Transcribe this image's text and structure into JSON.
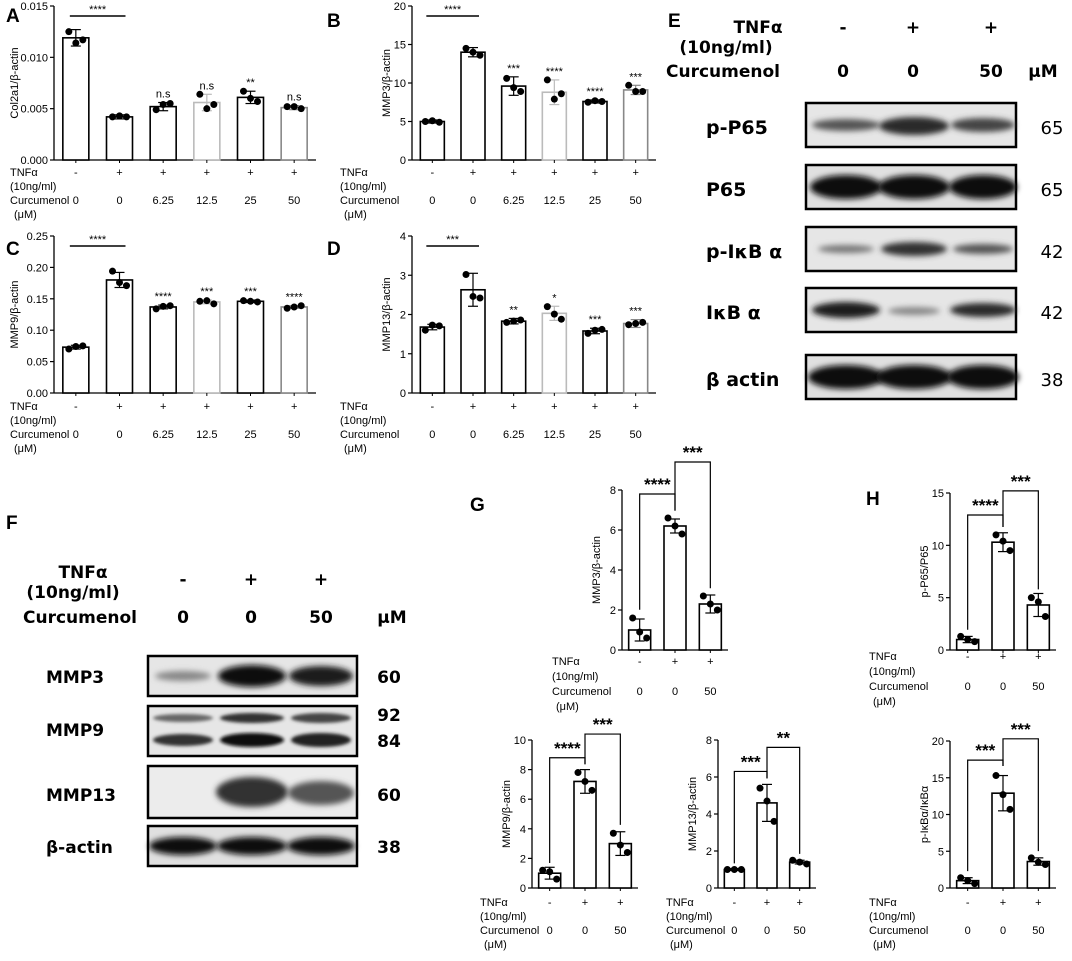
{
  "panels": {
    "A": {
      "letter": "A"
    },
    "B": {
      "letter": "B"
    },
    "C": {
      "letter": "C"
    },
    "D": {
      "letter": "D"
    },
    "E": {
      "letter": "E"
    },
    "F": {
      "letter": "F"
    },
    "G": {
      "letter": "G"
    },
    "H": {
      "letter": "H"
    }
  },
  "row_labels": {
    "tnf": "TNFα",
    "tnf_conc": "(10ng/ml)",
    "curcumenol": "Curcumenol",
    "unit": "(μM)"
  },
  "chart_data": [
    {
      "id": "A",
      "type": "bar",
      "ylabel": "Col2a1/β-actin",
      "ylim": [
        0,
        0.015
      ],
      "yticks": [
        0.0,
        0.005,
        0.01,
        0.015
      ],
      "ytick_labels": [
        "0.000",
        "0.005",
        "0.010",
        "0.015"
      ],
      "tnf": [
        "-",
        "+",
        "+",
        "+",
        "+",
        "+"
      ],
      "curcumenol": [
        "0",
        "0",
        "6.25",
        "12.5",
        "25",
        "50"
      ],
      "values": [
        0.0119,
        0.0042,
        0.0052,
        0.0056,
        0.0061,
        0.0051
      ],
      "errors": [
        0.0008,
        0.0002,
        0.0004,
        0.0008,
        0.0006,
        0.0002
      ],
      "points": [
        [
          0.0125,
          0.0117,
          0.0114
        ],
        [
          0.0042,
          0.0042,
          0.0043
        ],
        [
          0.0049,
          0.0055,
          0.0054
        ],
        [
          0.0064,
          0.0054,
          0.005
        ],
        [
          0.0067,
          0.0057,
          0.006
        ],
        [
          0.0052,
          0.005,
          0.0052
        ]
      ],
      "colors": [
        "#000000",
        "#000000",
        "#000000",
        "#bbbbbb",
        "#000000",
        "#888888"
      ],
      "sig_labels": [
        "",
        "",
        "n.s",
        "n.s",
        "**",
        "n.s"
      ],
      "bracket": {
        "label": "****",
        "from": 0,
        "to": 1
      }
    },
    {
      "id": "B",
      "type": "bar",
      "ylabel": "MMP3/β-actin",
      "ylim": [
        0,
        20
      ],
      "yticks": [
        0,
        5,
        10,
        15,
        20
      ],
      "ytick_labels": [
        "0",
        "5",
        "10",
        "15",
        "20"
      ],
      "tnf": [
        "-",
        "+",
        "+",
        "+",
        "+",
        "+"
      ],
      "curcumenol": [
        "0",
        "0",
        "6.25",
        "12.5",
        "25",
        "50"
      ],
      "values": [
        5.0,
        14.0,
        9.6,
        8.8,
        7.6,
        9.1
      ],
      "errors": [
        0.2,
        0.6,
        1.2,
        1.6,
        0.2,
        0.6
      ],
      "points": [
        [
          5.0,
          4.9,
          5.1
        ],
        [
          14.5,
          13.6,
          14.0
        ],
        [
          10.6,
          8.9,
          9.4
        ],
        [
          10.4,
          8.6,
          7.9
        ],
        [
          7.5,
          7.6,
          7.7
        ],
        [
          9.7,
          8.9,
          8.9
        ]
      ],
      "colors": [
        "#000000",
        "#000000",
        "#000000",
        "#bbbbbb",
        "#000000",
        "#888888"
      ],
      "sig_labels": [
        "",
        "",
        "***",
        "****",
        "****",
        "***"
      ],
      "bracket": {
        "label": "****",
        "from": 0,
        "to": 1
      }
    },
    {
      "id": "C",
      "type": "bar",
      "ylabel": "MMP9/β-actin",
      "ylim": [
        0,
        0.25
      ],
      "yticks": [
        0,
        0.05,
        0.1,
        0.15,
        0.2,
        0.25
      ],
      "ytick_labels": [
        "0.00",
        "0.05",
        "0.10",
        "0.15",
        "0.20",
        "0.25"
      ],
      "tnf": [
        "-",
        "+",
        "+",
        "+",
        "+",
        "+"
      ],
      "curcumenol": [
        "0",
        "0",
        "6.25",
        "12.5",
        "25",
        "50"
      ],
      "values": [
        0.073,
        0.18,
        0.137,
        0.145,
        0.146,
        0.137
      ],
      "errors": [
        0.003,
        0.012,
        0.003,
        0.003,
        0.002,
        0.002
      ],
      "points": [
        [
          0.07,
          0.075,
          0.074
        ],
        [
          0.194,
          0.171,
          0.176
        ],
        [
          0.134,
          0.139,
          0.138
        ],
        [
          0.146,
          0.142,
          0.147
        ],
        [
          0.147,
          0.145,
          0.146
        ],
        [
          0.135,
          0.139,
          0.137
        ]
      ],
      "colors": [
        "#000000",
        "#000000",
        "#000000",
        "#bbbbbb",
        "#000000",
        "#888888"
      ],
      "sig_labels": [
        "",
        "",
        "****",
        "***",
        "***",
        "****"
      ],
      "bracket": {
        "label": "****",
        "from": 0,
        "to": 1
      }
    },
    {
      "id": "D",
      "type": "bar",
      "ylabel": "MMP13/β-actin",
      "ylim": [
        0,
        4
      ],
      "yticks": [
        0,
        1,
        2,
        3,
        4
      ],
      "ytick_labels": [
        "0",
        "1",
        "2",
        "3",
        "4"
      ],
      "tnf": [
        "-",
        "+",
        "+",
        "+",
        "+",
        "+"
      ],
      "curcumenol": [
        "0",
        "0",
        "6.25",
        "12.5",
        "25",
        "50"
      ],
      "values": [
        1.68,
        2.63,
        1.83,
        2.03,
        1.58,
        1.77
      ],
      "errors": [
        0.07,
        0.42,
        0.07,
        0.18,
        0.07,
        0.1
      ],
      "points": [
        [
          1.6,
          1.71,
          1.73
        ],
        [
          3.02,
          2.42,
          2.46
        ],
        [
          1.8,
          1.86,
          1.83
        ],
        [
          2.2,
          1.88,
          2.01
        ],
        [
          1.52,
          1.62,
          1.6
        ],
        [
          1.74,
          1.8,
          1.77
        ]
      ],
      "colors": [
        "#000000",
        "#000000",
        "#000000",
        "#bbbbbb",
        "#000000",
        "#888888"
      ],
      "sig_labels": [
        "",
        "",
        "**",
        "*",
        "***",
        "***"
      ],
      "bracket": {
        "label": "***",
        "from": 0,
        "to": 1
      }
    },
    {
      "id": "G1",
      "type": "bar",
      "ylabel": "MMP3/β-actin",
      "ylim": [
        0,
        8
      ],
      "yticks": [
        0,
        2,
        4,
        6,
        8
      ],
      "ytick_labels": [
        "0",
        "2",
        "4",
        "6",
        "8"
      ],
      "tnf": [
        "-",
        "+",
        "+"
      ],
      "curcumenol": [
        "0",
        "0",
        "50"
      ],
      "values": [
        1.0,
        6.2,
        2.3
      ],
      "errors": [
        0.55,
        0.35,
        0.45
      ],
      "points": [
        [
          1.6,
          0.6,
          0.9
        ],
        [
          6.6,
          5.8,
          6.2
        ],
        [
          2.7,
          2.0,
          2.3
        ]
      ],
      "colors": [
        "#000000",
        "#000000",
        "#000000"
      ],
      "brackets": [
        {
          "label": "****",
          "from": 0,
          "to": 1,
          "y": 7.8
        },
        {
          "label": "***",
          "from": 1,
          "to": 2,
          "y": 9.4
        }
      ]
    },
    {
      "id": "H1",
      "type": "bar",
      "ylabel": "p-P65/P65",
      "ylim": [
        0,
        15
      ],
      "yticks": [
        0,
        5,
        10,
        15
      ],
      "ytick_labels": [
        "0",
        "5",
        "10",
        "15"
      ],
      "tnf": [
        "-",
        "+",
        "+"
      ],
      "curcumenol": [
        "0",
        "0",
        "50"
      ],
      "values": [
        1.0,
        10.3,
        4.3
      ],
      "errors": [
        0.3,
        0.9,
        1.1
      ],
      "points": [
        [
          1.3,
          0.8,
          1.0
        ],
        [
          11.0,
          9.5,
          10.4
        ],
        [
          5.0,
          3.2,
          4.6
        ]
      ],
      "colors": [
        "#000000",
        "#000000",
        "#000000"
      ],
      "brackets": [
        {
          "label": "****",
          "from": 0,
          "to": 1,
          "y": 12.9
        },
        {
          "label": "***",
          "from": 1,
          "to": 2,
          "y": 15.2
        }
      ]
    },
    {
      "id": "G2",
      "type": "bar",
      "ylabel": "MMP9/β-actin",
      "ylim": [
        0,
        10
      ],
      "yticks": [
        0,
        2,
        4,
        6,
        8,
        10
      ],
      "ytick_labels": [
        "0",
        "2",
        "4",
        "6",
        "8",
        "10"
      ],
      "tnf": [
        "-",
        "+",
        "+"
      ],
      "curcumenol": [
        "0",
        "0",
        "50"
      ],
      "values": [
        1.0,
        7.2,
        3.0
      ],
      "errors": [
        0.4,
        0.8,
        0.8
      ],
      "points": [
        [
          1.2,
          0.6,
          1.1
        ],
        [
          7.8,
          6.6,
          7.2
        ],
        [
          3.7,
          2.4,
          2.9
        ]
      ],
      "colors": [
        "#000000",
        "#000000",
        "#000000"
      ],
      "brackets": [
        {
          "label": "****",
          "from": 0,
          "to": 1,
          "y": 8.8
        },
        {
          "label": "***",
          "from": 1,
          "to": 2,
          "y": 10.4
        }
      ]
    },
    {
      "id": "G3",
      "type": "bar",
      "ylabel": "MMP13/β-actin",
      "ylim": [
        0,
        8
      ],
      "yticks": [
        0,
        2,
        4,
        6,
        8
      ],
      "ytick_labels": [
        "0",
        "2",
        "4",
        "6",
        "8"
      ],
      "tnf": [
        "-",
        "+",
        "+"
      ],
      "curcumenol": [
        "0",
        "0",
        "50"
      ],
      "values": [
        1.0,
        4.6,
        1.4
      ],
      "errors": [
        0.05,
        1.0,
        0.1
      ],
      "points": [
        [
          1.0,
          1.0,
          1.0
        ],
        [
          5.4,
          3.6,
          4.7
        ],
        [
          1.5,
          1.3,
          1.4
        ]
      ],
      "colors": [
        "#000000",
        "#000000",
        "#000000"
      ],
      "brackets": [
        {
          "label": "***",
          "from": 0,
          "to": 1,
          "y": 6.3
        },
        {
          "label": "**",
          "from": 1,
          "to": 2,
          "y": 7.6
        }
      ]
    },
    {
      "id": "H2",
      "type": "bar",
      "ylabel": "p-IκBα/IκBα",
      "ylim": [
        0,
        20
      ],
      "yticks": [
        0,
        5,
        10,
        15,
        20
      ],
      "ytick_labels": [
        "0",
        "5",
        "10",
        "15",
        "20"
      ],
      "tnf": [
        "-",
        "+",
        "+"
      ],
      "curcumenol": [
        "0",
        "0",
        "50"
      ],
      "values": [
        1.0,
        12.9,
        3.6
      ],
      "errors": [
        0.4,
        2.4,
        0.5
      ],
      "points": [
        [
          1.4,
          0.6,
          1.0
        ],
        [
          15.3,
          10.7,
          12.7
        ],
        [
          4.1,
          3.2,
          3.5
        ]
      ],
      "colors": [
        "#000000",
        "#000000",
        "#000000"
      ],
      "brackets": [
        {
          "label": "***",
          "from": 0,
          "to": 1,
          "y": 17.4
        },
        {
          "label": "***",
          "from": 1,
          "to": 2,
          "y": 20.3
        }
      ]
    }
  ],
  "blotE": {
    "header": {
      "tnf": "TNFα",
      "conc": "(10ng/ml)",
      "curcumenol": "Curcumenol",
      "signs": [
        "-",
        "+",
        "+"
      ],
      "doses": [
        "0",
        "0",
        "50"
      ],
      "unit": "μM"
    },
    "bands": [
      {
        "label": "p-P65",
        "kd": "65"
      },
      {
        "label": "P65",
        "kd": "65"
      },
      {
        "label": "p-IκB α",
        "kd": "42"
      },
      {
        "label": "IκB α",
        "kd": "42"
      },
      {
        "label": "β actin",
        "kd": "38"
      }
    ]
  },
  "blotF": {
    "header": {
      "tnf": "TNFα",
      "conc": "(10ng/ml)",
      "curcumenol": "Curcumenol",
      "signs": [
        "-",
        "+",
        "+"
      ],
      "doses": [
        "0",
        "0",
        "50"
      ],
      "unit": "μM"
    },
    "bands": [
      {
        "label": "MMP3",
        "kd": "60"
      },
      {
        "label": "MMP9",
        "kd": "92",
        "kd2": "84"
      },
      {
        "label": "MMP13",
        "kd": "60"
      },
      {
        "label": "β-actin",
        "kd": "38"
      }
    ]
  }
}
